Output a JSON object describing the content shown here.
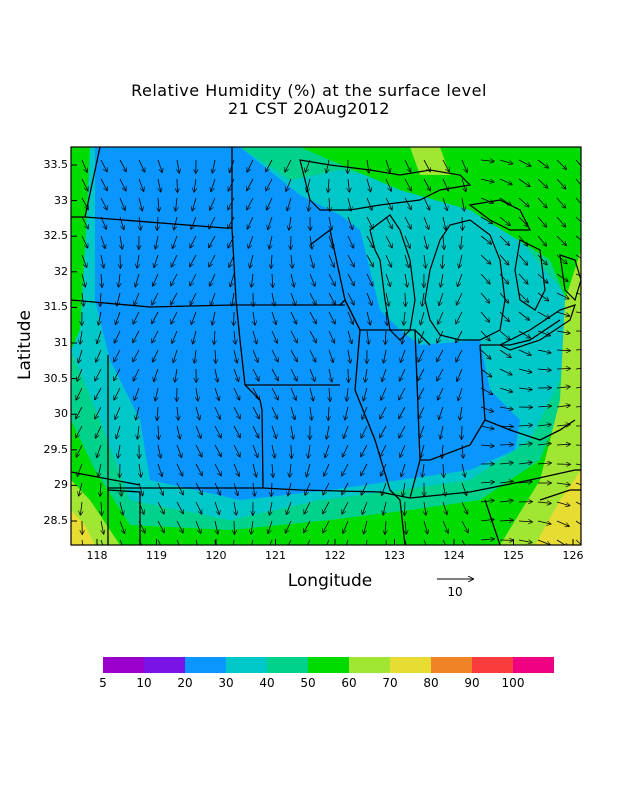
{
  "title_line1": "Relative Humidity (%) at the surface level",
  "title_line2": "21 CST 20Aug2012",
  "xlabel": "Longitude",
  "ylabel": "Latitude",
  "x_ticks": [
    "118",
    "119",
    "120",
    "121",
    "122",
    "123",
    "124",
    "125",
    "126"
  ],
  "y_ticks": [
    "33.5",
    "33",
    "32.5",
    "32",
    "31.5",
    "31",
    "30.5",
    "30",
    "29.5",
    "29",
    "28.5"
  ],
  "vector_reference": {
    "label": "10",
    "icon": "right-arrow-icon"
  },
  "colorbar": {
    "labels": [
      "5",
      "10",
      "20",
      "30",
      "40",
      "50",
      "60",
      "70",
      "80",
      "90",
      "100"
    ],
    "colors": [
      "#9a00cc",
      "#7a14e6",
      "#0a96ff",
      "#00c8c8",
      "#00d28c",
      "#00dc00",
      "#a0e632",
      "#e6dc32",
      "#f08228",
      "#fa3c3c",
      "#f00082"
    ]
  },
  "field_colors": {
    "dry": "#0a96ff",
    "mid": "#00c8c8",
    "moist": "#00d28c",
    "wet": "#00dc00",
    "very_wet": "#a0e632",
    "humid": "#e6dc32"
  }
}
